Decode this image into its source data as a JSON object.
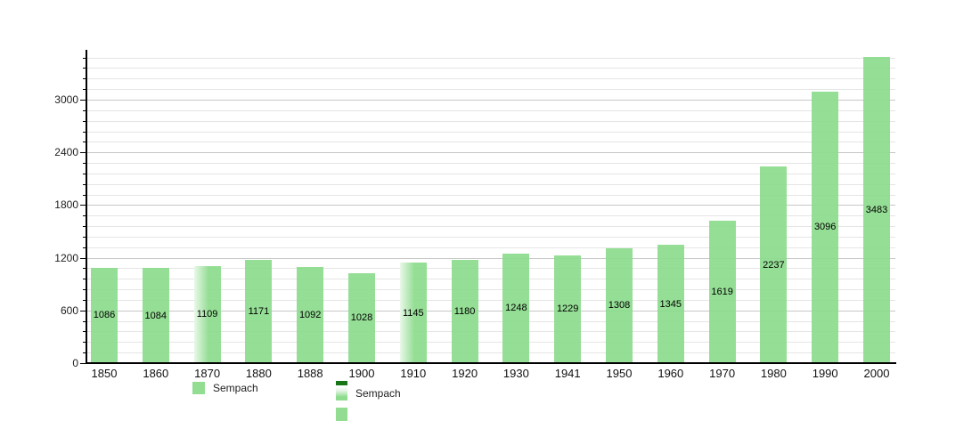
{
  "chart_data": {
    "type": "bar",
    "title": "",
    "xlabel": "",
    "ylabel": "",
    "categories": [
      "1850",
      "1860",
      "1870",
      "1880",
      "1888",
      "1900",
      "1910",
      "1920",
      "1930",
      "1941",
      "1950",
      "1960",
      "1970",
      "1980",
      "1990",
      "2000"
    ],
    "series": [
      {
        "name": "Sempach",
        "values": [
          1086,
          1084,
          1109,
          1171,
          1092,
          1028,
          1145,
          1180,
          1248,
          1229,
          1308,
          1345,
          1619,
          2237,
          3096,
          3483
        ]
      }
    ],
    "value_labels_inside_bars": true,
    "ylim": [
      0,
      3560
    ],
    "yticks": [
      0,
      600,
      1200,
      1800,
      2400,
      3000
    ],
    "minor_gridline_step": 120,
    "grid": true,
    "legend_position": "bottom",
    "colors": {
      "bar_fill": "#8ddb8d",
      "dark_legend_strip": "#167616",
      "major_gridline": "#c7c7c7",
      "minor_gridline": "#e5e5e5",
      "axis": "#000000",
      "text": "#111111"
    },
    "render_artifact_faded_bars": [
      "1870",
      "1910"
    ]
  },
  "legends": [
    {
      "entries": [
        {
          "swatch": "green",
          "label": "Sempach"
        }
      ]
    },
    {
      "entries": [
        {
          "swatch": "dark-strip",
          "label": ""
        },
        {
          "swatch": "green-fade",
          "label": "Sempach"
        },
        {
          "swatch": "green-small",
          "label": ""
        }
      ]
    }
  ]
}
